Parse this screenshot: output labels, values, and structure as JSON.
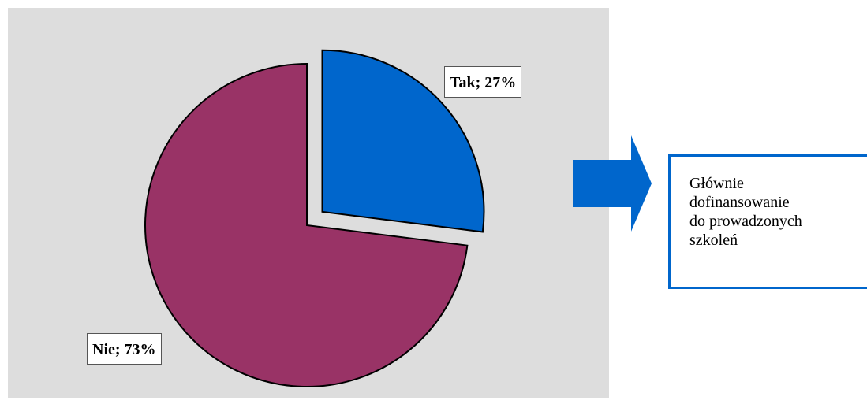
{
  "chart_data": {
    "type": "pie",
    "slices": [
      {
        "label": "Tak",
        "value": 27,
        "display": "Tak; 27%",
        "color": "#0066cc",
        "exploded": true
      },
      {
        "label": "Nie",
        "value": 73,
        "display": "Nie; 73%",
        "color": "#993366",
        "exploded": false
      }
    ],
    "background": "#dddddd",
    "legend": "none"
  },
  "note": {
    "lines": [
      "Głównie",
      "dofinansowanie",
      "do prowadzonych",
      "szkoleń"
    ],
    "border_color": "#0066cc"
  },
  "arrow": {
    "color": "#0066cc",
    "direction": "right"
  }
}
